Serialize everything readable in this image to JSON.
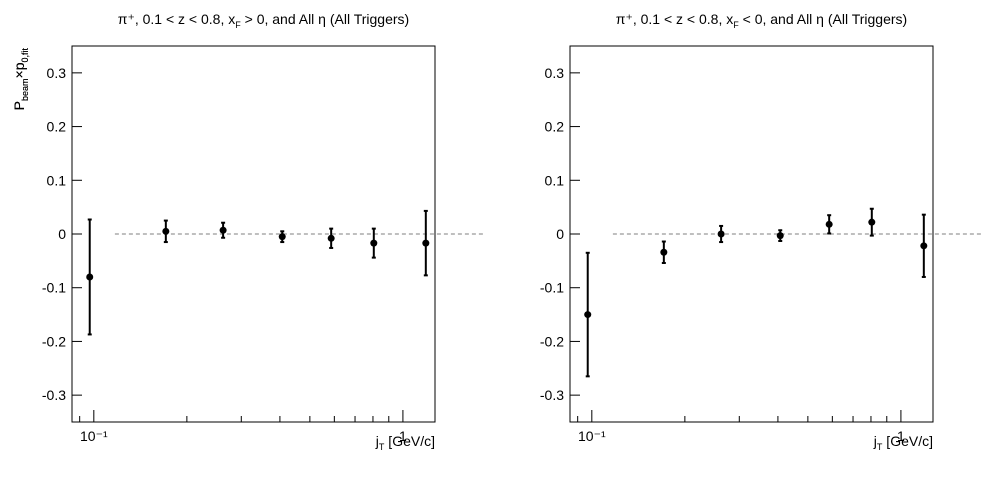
{
  "chart_data": [
    {
      "type": "scatter",
      "title": [
        "π⁺, 0.1 < z < 0.8, x",
        "F",
        " > 0, and All η (All Triggers)"
      ],
      "y_label": [
        "P",
        "beam",
        "×p",
        "0,fit"
      ],
      "x_label": [
        "j",
        "T",
        " [GeV/c]"
      ],
      "log_x": true,
      "xlim": [
        0.085,
        1.27
      ],
      "ylim": [
        -0.35,
        0.35
      ],
      "xticks": [
        {
          "value": 0.1,
          "label": "10⁻¹"
        },
        1
      ],
      "xminorticks": [
        0.09,
        0.2,
        0.3,
        0.4,
        0.5,
        0.6,
        0.7,
        0.8,
        0.9
      ],
      "yticks": [
        -0.3,
        -0.2,
        -0.1,
        0,
        0.1,
        0.2,
        0.3
      ],
      "hline": {
        "y": 0,
        "x": [
          0.117,
          1.84
        ]
      },
      "color": "#000000",
      "x": [
        0.097,
        0.171,
        0.262,
        0.407,
        0.586,
        0.805,
        1.186
      ],
      "values": [
        -0.08,
        0.005,
        0.007,
        -0.005,
        -0.008,
        -0.017,
        -0.017
      ],
      "errors": [
        0.107,
        0.02,
        0.014,
        0.01,
        0.018,
        0.027,
        0.06
      ]
    },
    {
      "type": "scatter",
      "title": [
        "π⁺, 0.1 < z < 0.8, x",
        "F",
        " < 0, and All η (All Triggers)"
      ],
      "y_label": [
        "P",
        "beam",
        "×p",
        "0,fit"
      ],
      "x_label": [
        "j",
        "T",
        " [GeV/c]"
      ],
      "log_x": true,
      "xlim": [
        0.085,
        1.27
      ],
      "ylim": [
        -0.35,
        0.35
      ],
      "xticks": [
        {
          "value": 0.1,
          "label": "10⁻¹"
        },
        1
      ],
      "xminorticks": [
        0.09,
        0.2,
        0.3,
        0.4,
        0.5,
        0.6,
        0.7,
        0.8,
        0.9
      ],
      "yticks": [
        -0.3,
        -0.2,
        -0.1,
        0,
        0.1,
        0.2,
        0.3
      ],
      "hline": {
        "y": 0,
        "x": [
          0.117,
          1.84
        ]
      },
      "color": "#000000",
      "x": [
        0.097,
        0.171,
        0.262,
        0.407,
        0.586,
        0.805,
        1.186
      ],
      "values": [
        -0.15,
        -0.034,
        0.0,
        -0.003,
        0.018,
        0.022,
        -0.022
      ],
      "errors": [
        0.115,
        0.02,
        0.015,
        0.01,
        0.017,
        0.025,
        0.058
      ]
    }
  ]
}
